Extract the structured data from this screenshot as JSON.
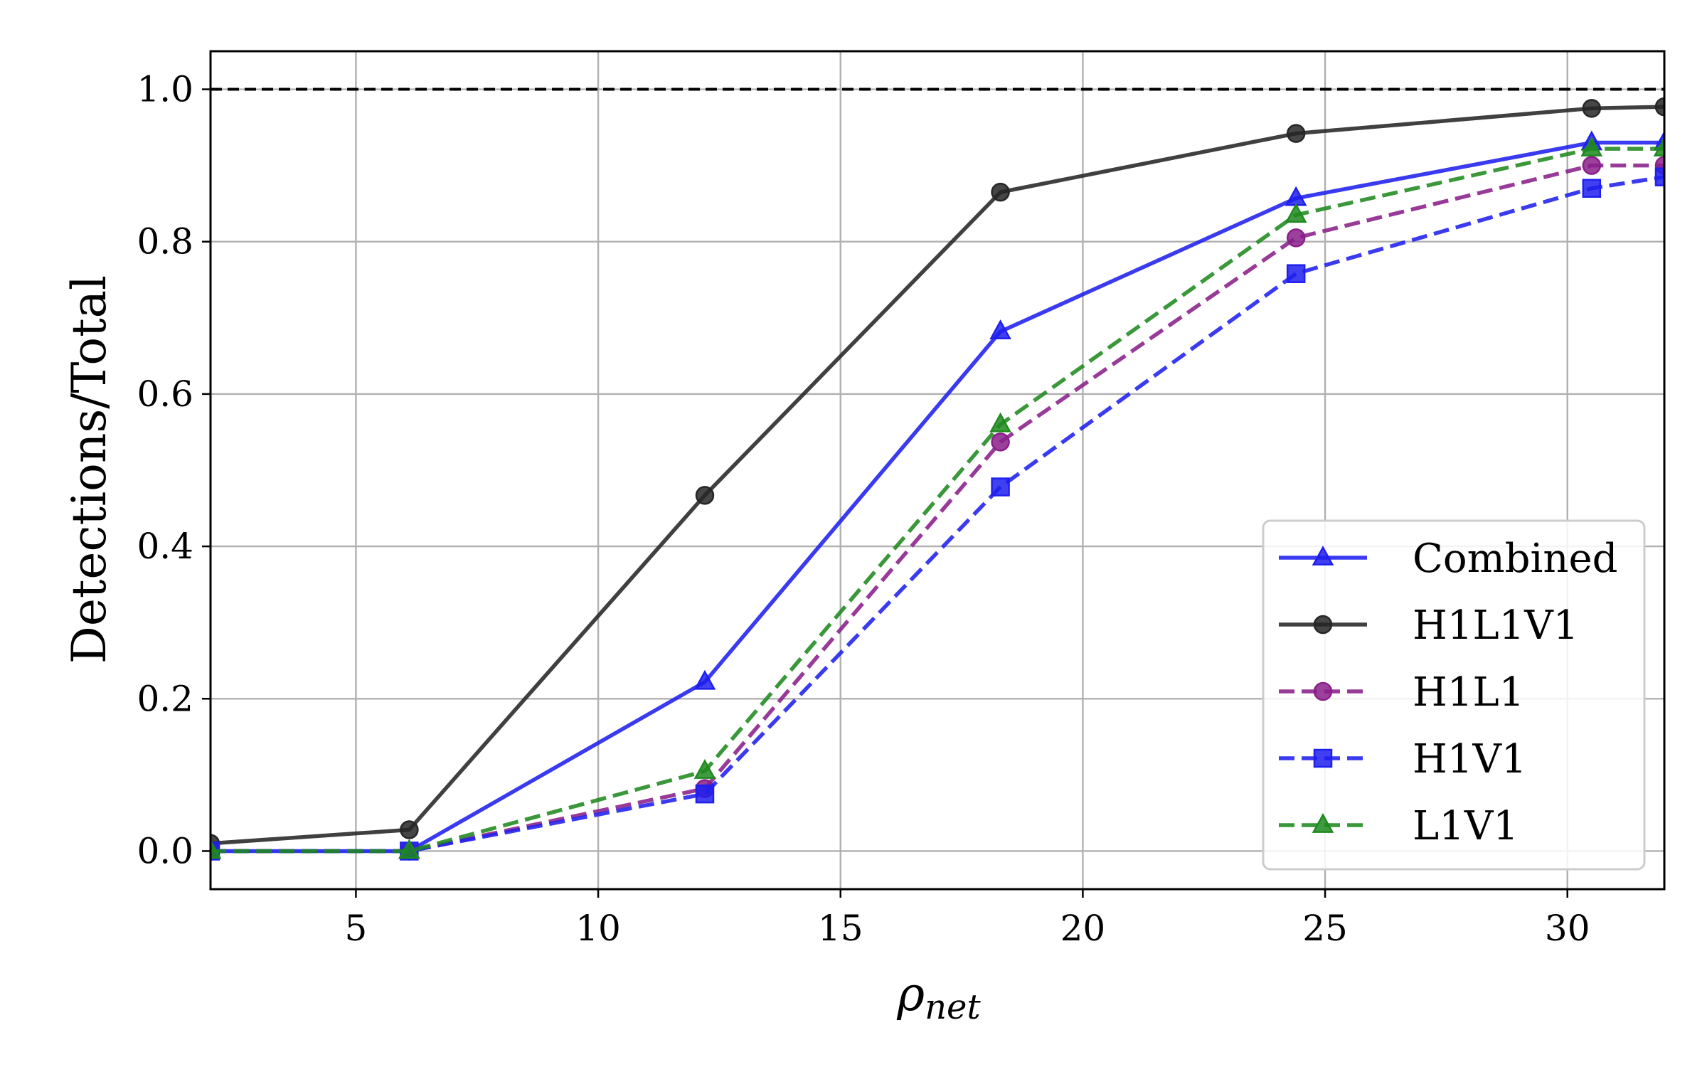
{
  "chart_data": {
    "type": "line",
    "xlabel_base": "ρ",
    "xlabel_sub": "net",
    "ylabel": "Detections/Total",
    "xlim": [
      2,
      32
    ],
    "ylim": [
      -0.05,
      1.05
    ],
    "xticks": [
      5,
      10,
      15,
      20,
      25,
      30
    ],
    "yticks": [
      0.0,
      0.2,
      0.4,
      0.6,
      0.8,
      1.0
    ],
    "xtick_labels": [
      "5",
      "10",
      "15",
      "20",
      "25",
      "30"
    ],
    "ytick_labels": [
      "0.0",
      "0.2",
      "0.4",
      "0.6",
      "0.8",
      "1.0"
    ],
    "grid": true,
    "reference_line": {
      "y": 1.0,
      "style": "dashed",
      "color": "#000000"
    },
    "legend_position": "lower-right",
    "x": [
      2,
      6.1,
      12.2,
      18.3,
      24.4,
      30.5,
      32
    ],
    "series": [
      {
        "name": "Combined",
        "color": "#1f1fef",
        "line": "solid",
        "marker": "triangle",
        "values": [
          0.0,
          0.0,
          0.222,
          0.682,
          0.857,
          0.93,
          0.93
        ]
      },
      {
        "name": "H1L1V1",
        "color": "#262626",
        "line": "solid",
        "marker": "circle",
        "values": [
          0.01,
          0.028,
          0.467,
          0.865,
          0.942,
          0.975,
          0.977
        ]
      },
      {
        "name": "H1L1",
        "color": "#8a1f8a",
        "line": "dashed",
        "marker": "circle",
        "values": [
          0.0,
          0.0,
          0.082,
          0.537,
          0.805,
          0.9,
          0.9
        ]
      },
      {
        "name": "H1V1",
        "color": "#1f1fef",
        "line": "dashed",
        "marker": "square",
        "values": [
          0.0,
          0.0,
          0.075,
          0.478,
          0.758,
          0.87,
          0.885
        ]
      },
      {
        "name": "L1V1",
        "color": "#1f8a1f",
        "line": "dashed",
        "marker": "triangle",
        "values": [
          0.0,
          0.0,
          0.105,
          0.56,
          0.835,
          0.922,
          0.922
        ]
      }
    ]
  }
}
